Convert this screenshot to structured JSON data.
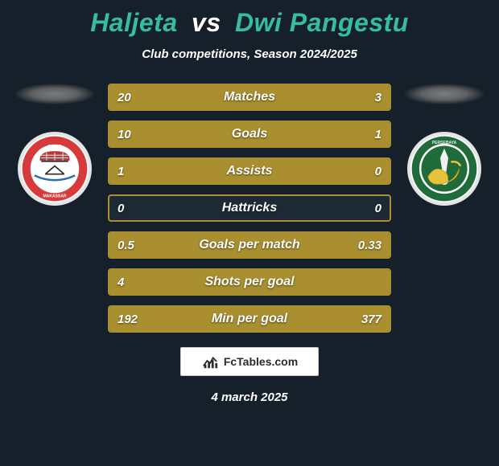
{
  "colors": {
    "background": "#16202a",
    "title_accent": "#36bca3",
    "text": "#ffffff",
    "bar_bg": "#1d2a36",
    "bar_border": "#a98f2f",
    "fill_left": "#a98f2f",
    "fill_right": "#a98f2f",
    "brand_bg": "#ffffff",
    "brand_border": "#cfcfcf",
    "brand_text": "#2c2c2c"
  },
  "title": {
    "player1": "Haljeta",
    "vs": "vs",
    "player2": "Dwi Pangestu"
  },
  "subtitle": "Club competitions, Season 2024/2025",
  "rows": [
    {
      "label": "Matches",
      "left": "20",
      "right": "3",
      "left_pct": 87,
      "right_pct": 13
    },
    {
      "label": "Goals",
      "left": "10",
      "right": "1",
      "left_pct": 91,
      "right_pct": 9
    },
    {
      "label": "Assists",
      "left": "1",
      "right": "0",
      "left_pct": 100,
      "right_pct": 0
    },
    {
      "label": "Hattricks",
      "left": "0",
      "right": "0",
      "left_pct": 0,
      "right_pct": 0
    },
    {
      "label": "Goals per match",
      "left": "0.5",
      "right": "0.33",
      "left_pct": 60,
      "right_pct": 40
    },
    {
      "label": "Shots per goal",
      "left": "4",
      "right": "",
      "left_pct": 100,
      "right_pct": 0
    },
    {
      "label": "Min per goal",
      "left": "192",
      "right": "377",
      "left_pct": 34,
      "right_pct": 66
    }
  ],
  "brand": "FcTables.com",
  "date": "4 march 2025",
  "badge_left": {
    "outer_ring": "#d63a3a",
    "ring_text": "#ffffff",
    "inner_bg": "#ffffff",
    "brick": "#b13a3a",
    "top_text": "PSM",
    "bottom_text": "MAKASSAR"
  },
  "badge_right": {
    "outer_ring": "#1f6b3a",
    "inner_bg": "#ffffff",
    "accent": "#e8c23a",
    "top_text": "PERSEBAYA"
  }
}
